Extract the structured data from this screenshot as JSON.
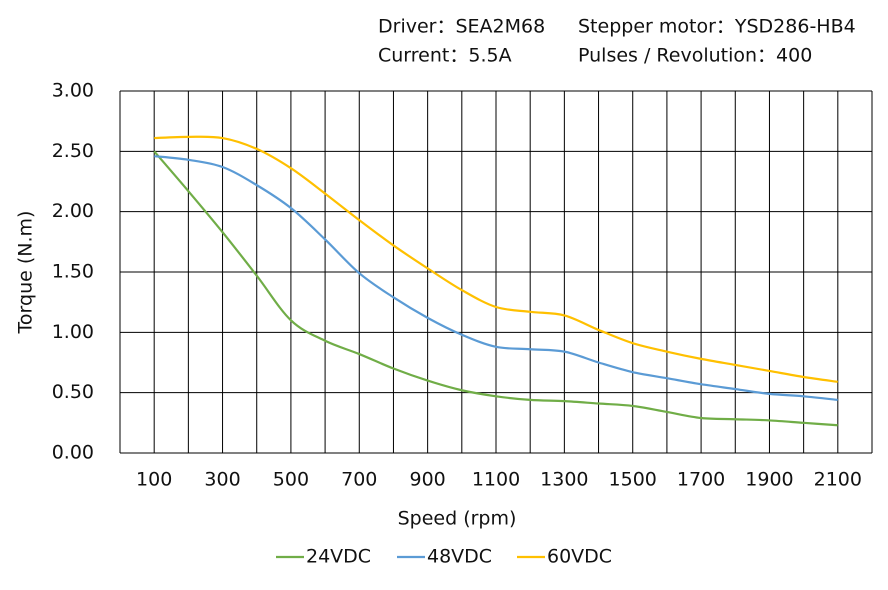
{
  "chart_data": {
    "type": "line",
    "annotations": [
      "Driver：SEA2M68",
      "Stepper motor：YSD286-HB4",
      "Current：5.5A",
      "Pulses / Revolution：400"
    ],
    "x_label": "Speed  (rpm)",
    "y_label": "Torque (N.m)",
    "x": [
      100,
      200,
      300,
      400,
      500,
      600,
      700,
      800,
      900,
      1000,
      1100,
      1200,
      1300,
      1400,
      1500,
      1600,
      1700,
      1800,
      1900,
      2000,
      2100
    ],
    "series": [
      {
        "name": "24VDC",
        "color": "#70ad47",
        "values": [
          2.5,
          2.17,
          1.83,
          1.47,
          1.1,
          0.93,
          0.82,
          0.7,
          0.6,
          0.52,
          0.47,
          0.44,
          0.43,
          0.41,
          0.39,
          0.34,
          0.29,
          0.28,
          0.27,
          0.25,
          0.23
        ]
      },
      {
        "name": "48VDC",
        "color": "#5b9bd5",
        "values": [
          2.46,
          2.43,
          2.37,
          2.22,
          2.03,
          1.77,
          1.49,
          1.29,
          1.12,
          0.98,
          0.88,
          0.86,
          0.84,
          0.75,
          0.67,
          0.62,
          0.57,
          0.53,
          0.49,
          0.47,
          0.44
        ]
      },
      {
        "name": "60VDC",
        "color": "#ffc000",
        "values": [
          2.61,
          2.62,
          2.61,
          2.52,
          2.36,
          2.15,
          1.93,
          1.72,
          1.53,
          1.35,
          1.21,
          1.17,
          1.14,
          1.02,
          0.91,
          0.84,
          0.78,
          0.73,
          0.68,
          0.63,
          0.59
        ]
      }
    ],
    "xlim": [
      0,
      2200
    ],
    "xticks": [
      100,
      300,
      500,
      700,
      900,
      1100,
      1300,
      1500,
      1700,
      1900,
      2100
    ],
    "xgrid": [
      0,
      100,
      200,
      300,
      400,
      500,
      600,
      700,
      800,
      900,
      1000,
      1100,
      1200,
      1300,
      1400,
      1500,
      1600,
      1700,
      1800,
      1900,
      2000,
      2100,
      2200
    ],
    "ylim": [
      0,
      3
    ],
    "yticks": [
      {
        "value": 0,
        "label": "0.00"
      },
      {
        "value": 0.5,
        "label": "0.50"
      },
      {
        "value": 1,
        "label": "1.00"
      },
      {
        "value": 1.5,
        "label": "1.50"
      },
      {
        "value": 2,
        "label": "2.00"
      },
      {
        "value": 2.5,
        "label": "2.50"
      },
      {
        "value": 3,
        "label": "3.00"
      }
    ],
    "grid": true,
    "legend": "bottom"
  }
}
